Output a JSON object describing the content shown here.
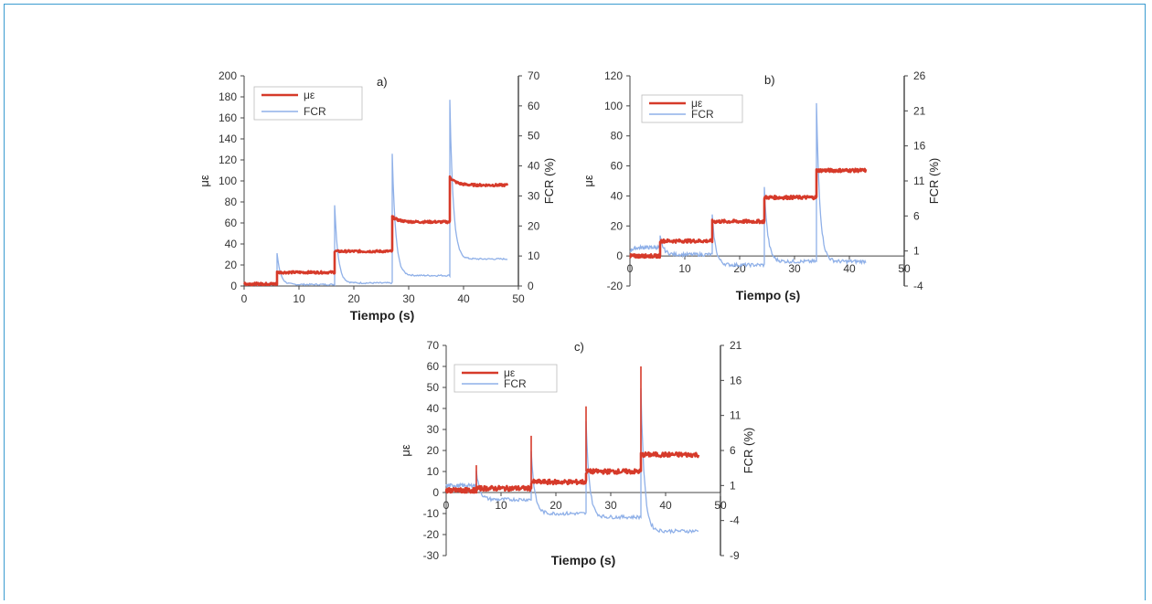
{
  "colors": {
    "ue": "#d63a2a",
    "fcr": "#8fb0e8",
    "frame": "#3a9bd0"
  },
  "chart_data": [
    {
      "type": "line",
      "panel_label": "a)",
      "xlabel": "Tiempo (s)",
      "ylabel_left": "με",
      "ylabel_right": "FCR (%)",
      "xlim": [
        0,
        50
      ],
      "xticks": [
        "0",
        "10",
        "20",
        "30",
        "40",
        "50"
      ],
      "ylim_left": [
        0,
        200
      ],
      "yticks_left": [
        "0",
        "20",
        "40",
        "60",
        "80",
        "100",
        "120",
        "140",
        "160",
        "180",
        "200"
      ],
      "ylim_right": [
        0,
        70
      ],
      "yticks_right": [
        "0",
        "10",
        "20",
        "30",
        "40",
        "50",
        "60",
        "70"
      ],
      "legend": [
        "με",
        "FCR"
      ],
      "series": [
        {
          "name": "με",
          "axis": "left",
          "segments": [
            [
              0,
              48
            ],
            [
              6,
              16
            ],
            [
              16.5,
              27
            ],
            [
              27,
              37
            ],
            [
              37.5,
              48
            ]
          ],
          "levels": [
            2,
            13,
            33,
            61,
            96
          ],
          "jumps": [
            0,
            0,
            0,
            5,
            8
          ],
          "end": 48
        },
        {
          "name": "FCR",
          "axis": "right",
          "starts": [
            0,
            6,
            16.5,
            27,
            37.5
          ],
          "peaks": [
            0.5,
            11,
            27,
            44,
            62
          ],
          "bases": [
            0.5,
            1,
            1.5,
            3.5,
            8.5
          ],
          "ends": [
            0.5,
            0.5,
            1,
            3.5,
            9
          ]
        }
      ]
    },
    {
      "type": "line",
      "panel_label": "b)",
      "xlabel": "Tiempo (s)",
      "ylabel_left": "με",
      "ylabel_right": "FCR (%)",
      "xlim": [
        0,
        50
      ],
      "xticks": [
        "0",
        "10",
        "20",
        "30",
        "40",
        "50"
      ],
      "ylim_left": [
        -20,
        120
      ],
      "yticks_left": [
        "-20",
        "0",
        "20",
        "40",
        "60",
        "80",
        "100",
        "120"
      ],
      "ylim_right": [
        -4,
        26
      ],
      "yticks_right": [
        "-4",
        "1",
        "6",
        "11",
        "16",
        "21",
        "26"
      ],
      "legend": [
        "με",
        "FCR"
      ],
      "series": [
        {
          "name": "με",
          "axis": "left",
          "levels": [
            0,
            10,
            23,
            39,
            57
          ],
          "starts": [
            0,
            5.5,
            15,
            24.5,
            34
          ],
          "end": 43
        },
        {
          "name": "FCR",
          "axis": "right",
          "starts": [
            0,
            5.5,
            15,
            24.5,
            34
          ],
          "peaks": [
            1,
            3,
            6,
            10,
            22
          ],
          "bases": [
            1.5,
            -0.5,
            -1,
            -1,
            -0.5
          ],
          "ends": [
            1.5,
            0.5,
            -1,
            -0.5,
            -0.5
          ]
        }
      ]
    },
    {
      "type": "line",
      "panel_label": "c)",
      "xlabel": "Tiempo (s)",
      "ylabel_left": "με",
      "ylabel_right": "FCR (%)",
      "xlim": [
        0,
        50
      ],
      "xticks": [
        "0",
        "10",
        "20",
        "30",
        "40",
        "50"
      ],
      "ylim_left": [
        -30,
        70
      ],
      "yticks_left": [
        "-30",
        "-20",
        "-10",
        "0",
        "10",
        "20",
        "30",
        "40",
        "50",
        "60",
        "70"
      ],
      "ylim_right": [
        -9,
        21
      ],
      "yticks_right": [
        "-9",
        "-4",
        "1",
        "6",
        "11",
        "16",
        "21"
      ],
      "legend": [
        "με",
        "FCR"
      ],
      "series": [
        {
          "name": "με",
          "axis": "left",
          "levels": [
            1,
            2,
            5,
            10,
            18
          ],
          "starts": [
            0,
            5.5,
            15.5,
            25.5,
            35.5
          ],
          "spikes": [
            1,
            13,
            27,
            41,
            60
          ],
          "end": 46
        },
        {
          "name": "FCR",
          "axis": "right",
          "starts": [
            0,
            5.5,
            15.5,
            25.5,
            35.5
          ],
          "peaks": [
            1,
            3,
            6,
            10,
            15
          ],
          "bases": [
            1,
            -2,
            -4.5,
            -5,
            -6
          ],
          "ends": [
            1,
            -1,
            -3,
            -3.5,
            -5.5
          ]
        }
      ]
    }
  ]
}
